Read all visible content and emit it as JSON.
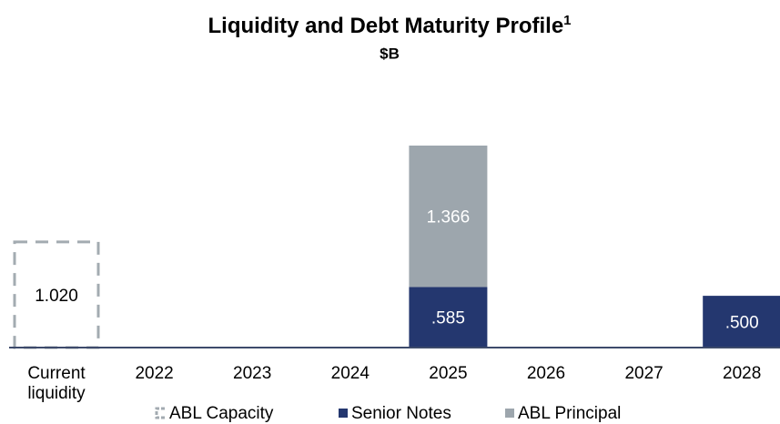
{
  "chart_data": {
    "type": "bar",
    "stacked": true,
    "title": "Liquidity and Debt Maturity Profile",
    "title_footnote": "1",
    "subtitle": "$B",
    "categories": [
      "Current liquidity",
      "2022",
      "2023",
      "2024",
      "2025",
      "2026",
      "2027",
      "2028"
    ],
    "series": [
      {
        "name": "ABL Capacity",
        "color": "#a3abb1",
        "style": "dashed",
        "values": [
          1.02,
          null,
          null,
          null,
          null,
          null,
          null,
          null
        ],
        "value_labels": [
          "1.020",
          null,
          null,
          null,
          null,
          null,
          null,
          null
        ]
      },
      {
        "name": "Senior Notes",
        "color": "#24376f",
        "values": [
          null,
          null,
          null,
          null,
          0.585,
          null,
          null,
          0.5
        ],
        "value_labels": [
          null,
          null,
          null,
          null,
          ".585",
          null,
          null,
          ".500"
        ]
      },
      {
        "name": "ABL Principal",
        "color": "#9da6ad",
        "values": [
          null,
          null,
          null,
          null,
          1.366,
          null,
          null,
          null
        ],
        "value_labels": [
          null,
          null,
          null,
          null,
          "1.366",
          null,
          null,
          null
        ]
      }
    ]
  }
}
